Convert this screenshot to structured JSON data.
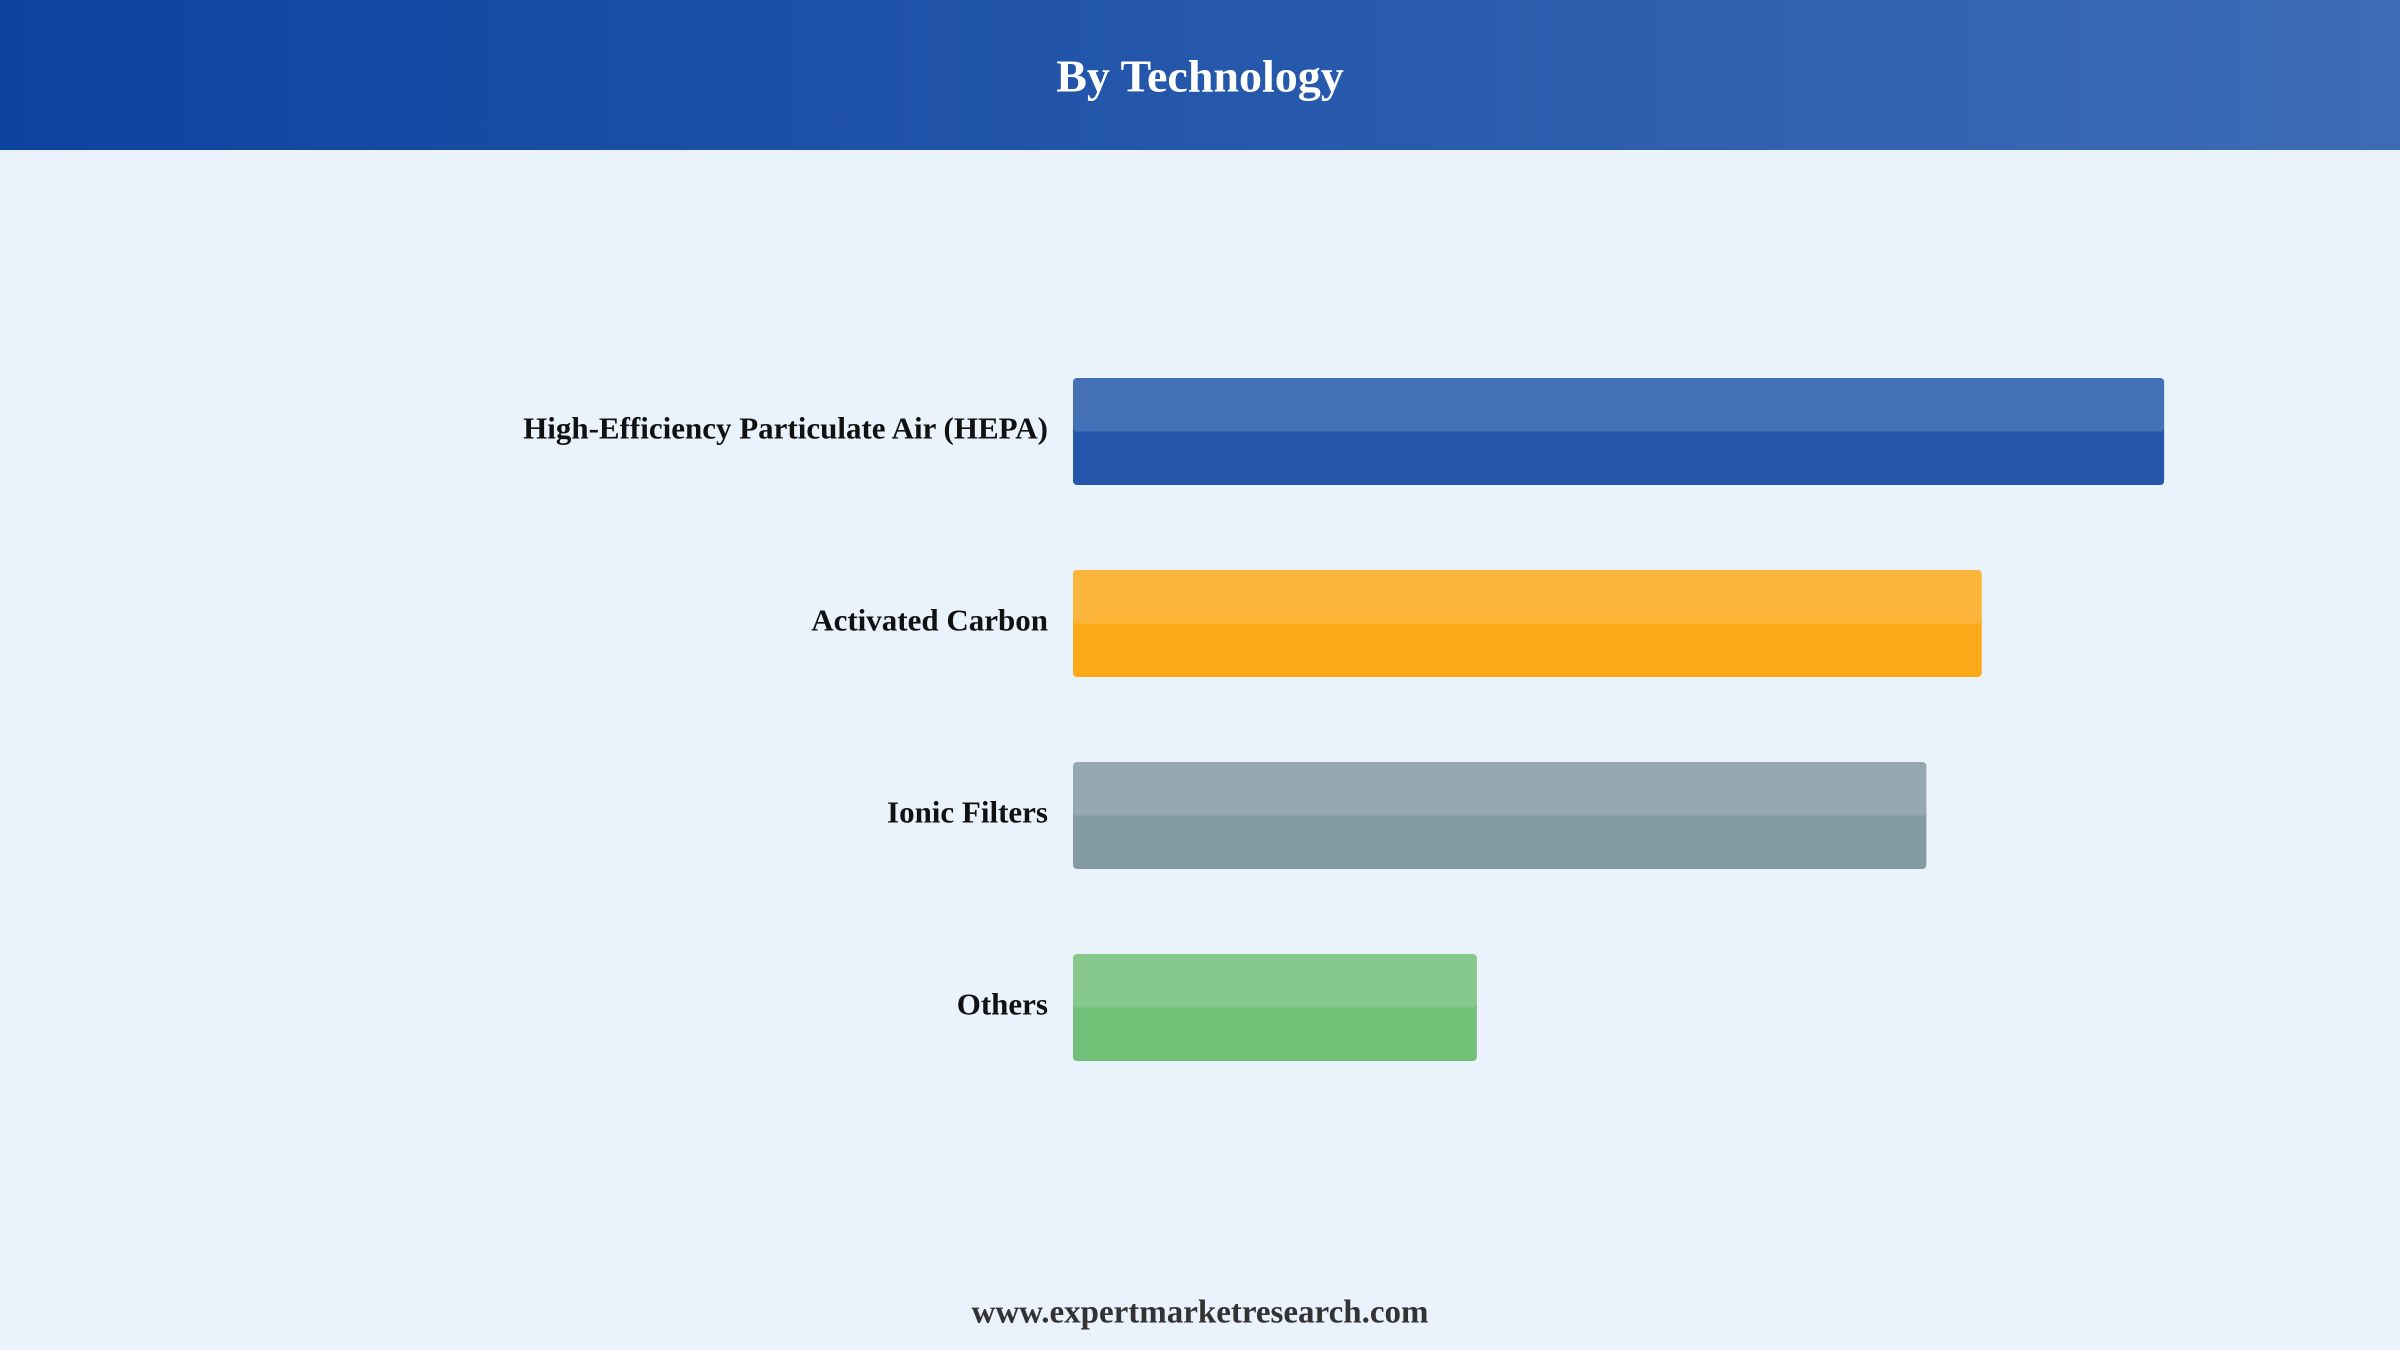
{
  "chart_data": {
    "type": "bar",
    "orientation": "horizontal",
    "title": "By Technology",
    "categories": [
      "High-Efficiency Particulate Air (HEPA)",
      "Activated Carbon",
      "Ionic Filters",
      "Others"
    ],
    "values": [
      33.5,
      27.9,
      26.2,
      12.4
    ],
    "colors": [
      "#2457ab",
      "#fba919",
      "#839ba5",
      "#72bf78"
    ],
    "xlim": [
      0,
      35
    ]
  },
  "footer": "www.expertmarketresearch.com"
}
